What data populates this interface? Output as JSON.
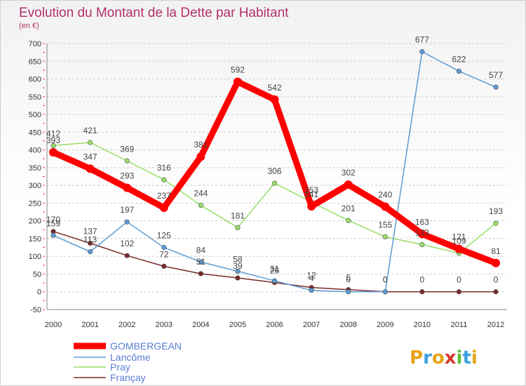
{
  "chart_data": {
    "type": "line",
    "title": "Evolution du Montant de la Dette par Habitant",
    "subtitle": "(en €)",
    "xlabel": "",
    "ylabel": "",
    "ylim": [
      -50,
      700
    ],
    "yticks": [
      -50,
      0,
      50,
      100,
      150,
      200,
      250,
      300,
      350,
      400,
      450,
      500,
      550,
      600,
      650,
      700
    ],
    "categories": [
      "2000",
      "2001",
      "2002",
      "2003",
      "2004",
      "2005",
      "2006",
      "2007",
      "2008",
      "2009",
      "2010",
      "2011",
      "2012"
    ],
    "grid": "horizontal-dashed",
    "legend_position": "bottom-left",
    "series": [
      {
        "name": "GOMBERGEAN",
        "color": "#ff0000",
        "values": [
          393,
          347,
          293,
          237,
          381,
          592,
          542,
          241,
          302,
          240,
          163,
          121,
          81
        ]
      },
      {
        "name": "Lancôme",
        "color": "#5b9bd5",
        "values": [
          159,
          113,
          197,
          125,
          84,
          58,
          31,
          4,
          0,
          0,
          677,
          622,
          577
        ]
      },
      {
        "name": "Pray",
        "color": "#99dd66",
        "values": [
          412,
          421,
          369,
          316,
          244,
          181,
          306,
          253,
          201,
          155,
          133,
          109,
          193
        ]
      },
      {
        "name": "Françay",
        "color": "#7a2a2a",
        "values": [
          170,
          137,
          102,
          72,
          51,
          39,
          26,
          12,
          6,
          0,
          0,
          0,
          0
        ]
      }
    ]
  },
  "logo": {
    "text": "Proxiti"
  }
}
